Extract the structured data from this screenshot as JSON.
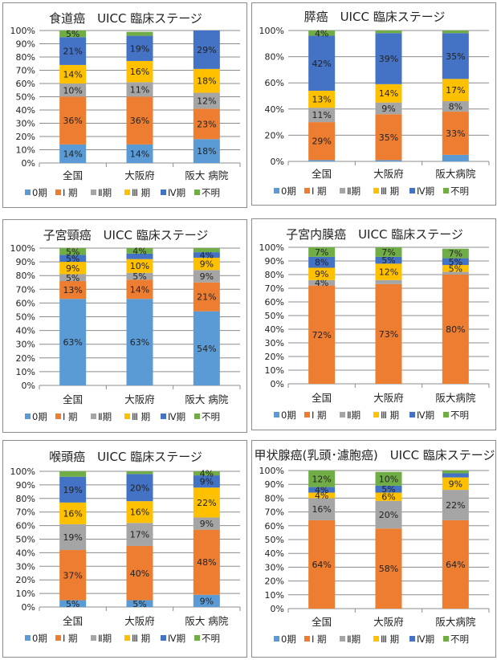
{
  "colors": {
    "stage0": "#5b9bd5",
    "stage1": "#ed7d31",
    "stage2": "#a5a5a5",
    "stage3": "#ffc000",
    "stage4": "#4472c4",
    "unknown": "#70ad47",
    "grid": "#8c8c8c"
  },
  "legend": [
    "0期",
    "Ⅰ 期",
    "Ⅱ期",
    "Ⅲ 期",
    "Ⅳ期",
    "不明"
  ],
  "chart_data": [
    {
      "type": "bar",
      "stacked": true,
      "title": "食道癌　UICC 臨床ステージ",
      "categories": [
        "全国",
        "大阪府",
        "阪大 病院"
      ],
      "yticks": [
        "0%",
        "10%",
        "20%",
        "30%",
        "40%",
        "50%",
        "60%",
        "70%",
        "80%",
        "90%",
        "100%"
      ],
      "ylim": [
        0,
        100
      ],
      "grid": true,
      "legend_position": "bottom",
      "series": [
        {
          "name": "0期",
          "values": [
            14,
            14,
            18
          ],
          "labels": [
            "14%",
            "14%",
            "18%"
          ]
        },
        {
          "name": "Ⅰ 期",
          "values": [
            36,
            36,
            23
          ],
          "labels": [
            "36%",
            "36%",
            "23%"
          ]
        },
        {
          "name": "Ⅱ期",
          "values": [
            10,
            11,
            12
          ],
          "labels": [
            "10%",
            "11%",
            "12%"
          ]
        },
        {
          "name": "Ⅲ 期",
          "values": [
            14,
            16,
            18
          ],
          "labels": [
            "14%",
            "16%",
            "18%"
          ]
        },
        {
          "name": "Ⅳ期",
          "values": [
            21,
            19,
            29
          ],
          "labels": [
            "21%",
            "19%",
            "29%"
          ]
        },
        {
          "name": "不明",
          "values": [
            5,
            3,
            0
          ],
          "labels": [
            "5%",
            "",
            ""
          ]
        }
      ]
    },
    {
      "type": "bar",
      "stacked": true,
      "title": "膵癌　UICC 臨床ステージ",
      "categories": [
        "全国",
        "大阪府",
        "阪大病院"
      ],
      "yticks": [
        "0%",
        "20%",
        "40%",
        "60%",
        "80%",
        "100%"
      ],
      "ylim": [
        0,
        100
      ],
      "grid": true,
      "legend_position": "bottom",
      "series": [
        {
          "name": "0期",
          "values": [
            1,
            1,
            5
          ],
          "labels": [
            "",
            "",
            ""
          ]
        },
        {
          "name": "Ⅰ 期",
          "values": [
            29,
            35,
            33
          ],
          "labels": [
            "29%",
            "35%",
            "33%"
          ]
        },
        {
          "name": "Ⅱ期",
          "values": [
            11,
            9,
            8
          ],
          "labels": [
            "11%",
            "9%",
            "8%"
          ]
        },
        {
          "name": "Ⅲ 期",
          "values": [
            13,
            14,
            17
          ],
          "labels": [
            "13%",
            "14%",
            "17%"
          ]
        },
        {
          "name": "Ⅳ期",
          "values": [
            42,
            39,
            35
          ],
          "labels": [
            "42%",
            "39%",
            "35%"
          ]
        },
        {
          "name": "不明",
          "values": [
            4,
            2,
            2
          ],
          "labels": [
            "4%",
            "",
            ""
          ]
        }
      ]
    },
    {
      "type": "bar",
      "stacked": true,
      "title": "子宮頸癌　UICC 臨床ステージ",
      "categories": [
        "全国",
        "大阪府",
        "阪大 病院"
      ],
      "yticks": [
        "0%",
        "10%",
        "20%",
        "30%",
        "40%",
        "50%",
        "60%",
        "70%",
        "80%",
        "90%",
        "100%"
      ],
      "ylim": [
        0,
        100
      ],
      "grid": true,
      "legend_position": "bottom",
      "series": [
        {
          "name": "0期",
          "values": [
            63,
            63,
            54
          ],
          "labels": [
            "63%",
            "63%",
            "54%"
          ]
        },
        {
          "name": "Ⅰ 期",
          "values": [
            13,
            14,
            21
          ],
          "labels": [
            "13%",
            "14%",
            "21%"
          ]
        },
        {
          "name": "Ⅱ期",
          "values": [
            5,
            5,
            9
          ],
          "labels": [
            "5%",
            "5%",
            "9%"
          ]
        },
        {
          "name": "Ⅲ 期",
          "values": [
            9,
            10,
            9
          ],
          "labels": [
            "9%",
            "10%",
            "9%"
          ]
        },
        {
          "name": "Ⅳ期",
          "values": [
            5,
            4,
            4
          ],
          "labels": [
            "5%",
            "",
            "4%"
          ]
        },
        {
          "name": "不明",
          "values": [
            5,
            4,
            3
          ],
          "labels": [
            "5%",
            "4%",
            ""
          ]
        }
      ]
    },
    {
      "type": "bar",
      "stacked": true,
      "title": "子宮内膜癌　UICC 臨床ステージ",
      "categories": [
        "全国",
        "大阪府",
        "阪大病院"
      ],
      "yticks": [
        "0%",
        "10%",
        "20%",
        "30%",
        "40%",
        "50%",
        "60%",
        "70%",
        "80%",
        "90%",
        "100%"
      ],
      "ylim": [
        0,
        100
      ],
      "grid": true,
      "legend_position": "bottom",
      "series": [
        {
          "name": "0期",
          "values": [
            0,
            0,
            0
          ],
          "labels": [
            "",
            "",
            ""
          ]
        },
        {
          "name": "Ⅰ 期",
          "values": [
            72,
            73,
            80
          ],
          "labels": [
            "72%",
            "73%",
            "80%"
          ]
        },
        {
          "name": "Ⅱ期",
          "values": [
            4,
            3,
            2
          ],
          "labels": [
            "4%",
            "",
            ""
          ]
        },
        {
          "name": "Ⅲ 期",
          "values": [
            9,
            12,
            5
          ],
          "labels": [
            "9%",
            "12%",
            "5%"
          ]
        },
        {
          "name": "Ⅳ期",
          "values": [
            8,
            5,
            5
          ],
          "labels": [
            "8%",
            "5%",
            "5%"
          ]
        },
        {
          "name": "不明",
          "values": [
            7,
            7,
            7
          ],
          "labels": [
            "7%",
            "7%",
            "7%"
          ]
        }
      ]
    },
    {
      "type": "bar",
      "stacked": true,
      "title": "喉頭癌　UICC 臨床ステージ",
      "categories": [
        "全国",
        "大阪府",
        "阪大 病院"
      ],
      "yticks": [
        "0%",
        "10%",
        "20%",
        "30%",
        "40%",
        "50%",
        "60%",
        "70%",
        "80%",
        "90%",
        "100%"
      ],
      "ylim": [
        0,
        100
      ],
      "grid": true,
      "legend_position": "bottom",
      "series": [
        {
          "name": "0期",
          "values": [
            5,
            5,
            9
          ],
          "labels": [
            "5%",
            "5%",
            "9%"
          ]
        },
        {
          "name": "Ⅰ 期",
          "values": [
            37,
            40,
            48
          ],
          "labels": [
            "37%",
            "40%",
            "48%"
          ]
        },
        {
          "name": "Ⅱ期",
          "values": [
            19,
            17,
            9
          ],
          "labels": [
            "19%",
            "17%",
            "9%"
          ]
        },
        {
          "name": "Ⅲ 期",
          "values": [
            16,
            16,
            22
          ],
          "labels": [
            "16%",
            "16%",
            "22%"
          ]
        },
        {
          "name": "Ⅳ期",
          "values": [
            19,
            20,
            9
          ],
          "labels": [
            "19%",
            "20%",
            "9%"
          ]
        },
        {
          "name": "不明",
          "values": [
            4,
            2,
            4
          ],
          "labels": [
            "",
            "",
            "4%"
          ]
        }
      ]
    },
    {
      "type": "bar",
      "stacked": true,
      "title": "甲状腺癌(乳頭･濾胞癌)　UICC 臨床ステージ",
      "categories": [
        "全国",
        "大阪府",
        "阪大病院"
      ],
      "yticks": [
        "0%",
        "10%",
        "20%",
        "30%",
        "40%",
        "50%",
        "60%",
        "70%",
        "80%",
        "90%",
        "100%"
      ],
      "ylim": [
        0,
        100
      ],
      "grid": true,
      "legend_position": "bottom",
      "series": [
        {
          "name": "0期",
          "values": [
            0,
            0,
            0
          ],
          "labels": [
            "",
            "",
            ""
          ]
        },
        {
          "name": "Ⅰ 期",
          "values": [
            64,
            58,
            64
          ],
          "labels": [
            "64%",
            "58%",
            "64%"
          ]
        },
        {
          "name": "Ⅱ期",
          "values": [
            16,
            20,
            22
          ],
          "labels": [
            "16%",
            "20%",
            "22%"
          ]
        },
        {
          "name": "Ⅲ 期",
          "values": [
            4,
            6,
            9
          ],
          "labels": [
            "4%",
            "6%",
            "9%"
          ]
        },
        {
          "name": "Ⅳ期",
          "values": [
            4,
            5,
            3
          ],
          "labels": [
            "4%",
            "5%",
            ""
          ]
        },
        {
          "name": "不明",
          "values": [
            12,
            10,
            2
          ],
          "labels": [
            "12%",
            "10%",
            ""
          ]
        }
      ]
    }
  ]
}
